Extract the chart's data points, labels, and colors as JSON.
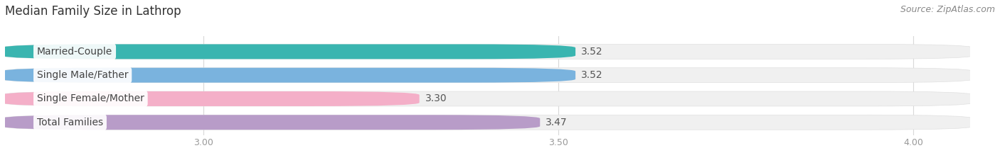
{
  "title": "Median Family Size in Lathrop",
  "source": "Source: ZipAtlas.com",
  "categories": [
    "Married-Couple",
    "Single Male/Father",
    "Single Female/Mother",
    "Total Families"
  ],
  "values": [
    3.52,
    3.52,
    3.3,
    3.47
  ],
  "bar_colors": [
    "#3ab5b0",
    "#7ab3de",
    "#f4afc8",
    "#b89cc8"
  ],
  "bar_bg_color": "#f0f0f0",
  "xlim_min": 2.72,
  "xlim_max": 4.08,
  "xticks": [
    3.0,
    3.5,
    4.0
  ],
  "bar_height": 0.62,
  "bar_gap": 0.38,
  "title_fontsize": 12,
  "label_fontsize": 10,
  "value_fontsize": 10,
  "tick_fontsize": 9,
  "source_fontsize": 9,
  "bg_color": "#ffffff",
  "label_color": "#444444",
  "value_color": "#555555",
  "tick_color": "#999999",
  "grid_color": "#d8d8d8"
}
